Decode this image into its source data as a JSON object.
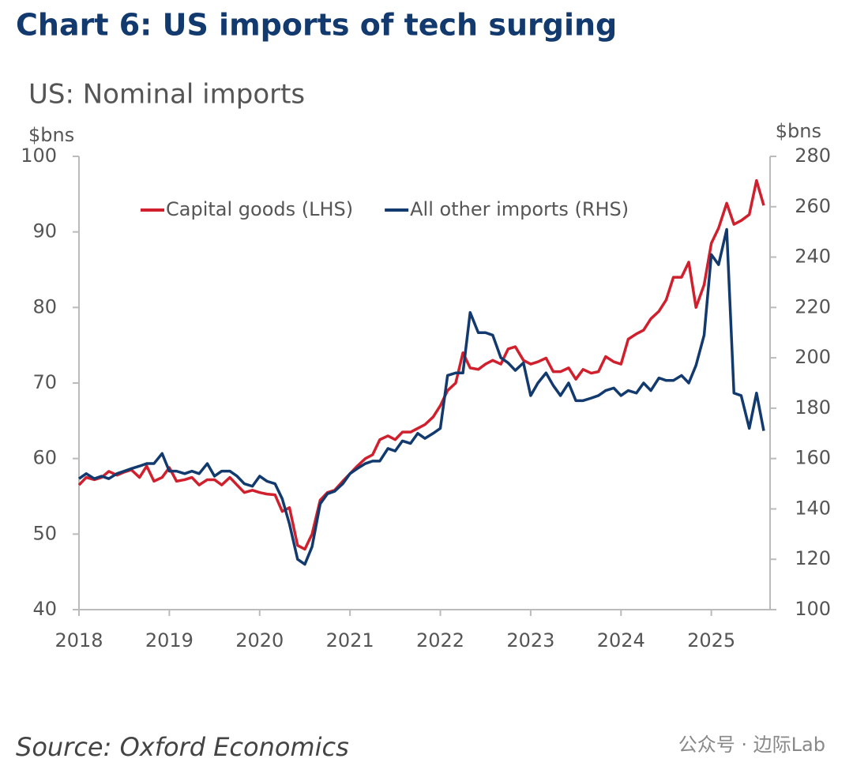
{
  "chart_data": {
    "type": "line",
    "title": "Chart 6: US imports of tech surging",
    "subtitle": "US: Nominal imports",
    "y_label": "$bns",
    "y2_label": "$bns",
    "source": "Source: Oxford Economics",
    "watermark": "公众号 · 边际Lab",
    "legend": "top",
    "xlim": [
      2018,
      2025.65
    ],
    "xticks": [
      2018,
      2019,
      2020,
      2021,
      2022,
      2023,
      2024,
      2025
    ],
    "ylim": [
      40,
      100
    ],
    "yticks": [
      40,
      50,
      60,
      70,
      80,
      90,
      100
    ],
    "y2lim": [
      100,
      280
    ],
    "y2ticks": [
      100,
      120,
      140,
      160,
      180,
      200,
      220,
      240,
      260,
      280
    ],
    "x": [
      2018,
      2018.08,
      2018.17,
      2018.25,
      2018.33,
      2018.42,
      2018.5,
      2018.58,
      2018.67,
      2018.75,
      2018.83,
      2018.92,
      2019,
      2019.08,
      2019.17,
      2019.25,
      2019.33,
      2019.42,
      2019.5,
      2019.58,
      2019.67,
      2019.75,
      2019.83,
      2019.92,
      2020,
      2020.08,
      2020.17,
      2020.25,
      2020.33,
      2020.42,
      2020.5,
      2020.58,
      2020.67,
      2020.75,
      2020.83,
      2020.92,
      2021,
      2021.08,
      2021.17,
      2021.25,
      2021.33,
      2021.42,
      2021.5,
      2021.58,
      2021.67,
      2021.75,
      2021.83,
      2021.92,
      2022,
      2022.08,
      2022.17,
      2022.25,
      2022.33,
      2022.42,
      2022.5,
      2022.58,
      2022.67,
      2022.75,
      2022.83,
      2022.92,
      2023,
      2023.08,
      2023.17,
      2023.25,
      2023.33,
      2023.42,
      2023.5,
      2023.58,
      2023.67,
      2023.75,
      2023.83,
      2023.92,
      2024,
      2024.08,
      2024.17,
      2024.25,
      2024.33,
      2024.42,
      2024.5,
      2024.58,
      2024.67,
      2024.75,
      2024.83,
      2024.92,
      2025,
      2025.08,
      2025.17,
      2025.25,
      2025.33,
      2025.42,
      2025.5,
      2025.58
    ],
    "series": [
      {
        "name": "Capital goods (LHS)",
        "color": "#d0202e",
        "axis": "y",
        "values": [
          56.5,
          57.5,
          57.2,
          57.5,
          58.3,
          57.8,
          58.2,
          58.5,
          57.5,
          59,
          57,
          57.5,
          58.8,
          57,
          57.2,
          57.5,
          56.5,
          57.2,
          57.2,
          56.5,
          57.5,
          56.5,
          55.5,
          55.8,
          55.5,
          55.3,
          55.2,
          53,
          53.5,
          48.5,
          48,
          50,
          54.5,
          55.5,
          55.8,
          57,
          58,
          59,
          60,
          60.5,
          62.5,
          63,
          62.5,
          63.5,
          63.5,
          64,
          64.5,
          65.5,
          67,
          69,
          70,
          74,
          72,
          71.8,
          72.5,
          73,
          72.5,
          74.5,
          74.8,
          73,
          72.5,
          72.8,
          73.3,
          71.5,
          71.5,
          72,
          70.5,
          71.8,
          71.3,
          71.5,
          73.5,
          72.8,
          72.5,
          75.8,
          76.5,
          77,
          78.5,
          79.5,
          81,
          84,
          84,
          86,
          80,
          83,
          88.5,
          90.5,
          93.8,
          91,
          91.5,
          92.3,
          96.8,
          93.5
        ]
      },
      {
        "name": "All other imports (RHS)",
        "color": "#123a6e",
        "axis": "y2",
        "values": [
          152,
          154,
          152,
          153,
          152,
          154,
          155,
          156,
          157,
          158,
          158,
          162,
          155,
          155,
          154,
          155,
          154,
          158,
          153,
          155,
          155,
          153,
          150,
          149,
          153,
          151,
          150,
          144,
          134,
          120,
          118,
          125,
          142,
          146,
          147,
          150,
          154,
          156,
          158,
          159,
          159,
          164,
          163,
          167,
          166,
          170,
          168,
          170,
          172,
          193,
          194,
          194,
          218,
          210,
          210,
          209,
          200,
          198,
          195,
          198,
          185,
          190,
          194,
          189,
          185,
          190,
          183,
          183,
          184,
          185,
          187,
          188,
          185,
          187,
          186,
          190,
          187,
          192,
          191,
          191,
          193,
          190,
          197,
          209,
          241,
          237,
          251,
          186,
          185,
          172,
          186,
          171
        ]
      }
    ]
  }
}
